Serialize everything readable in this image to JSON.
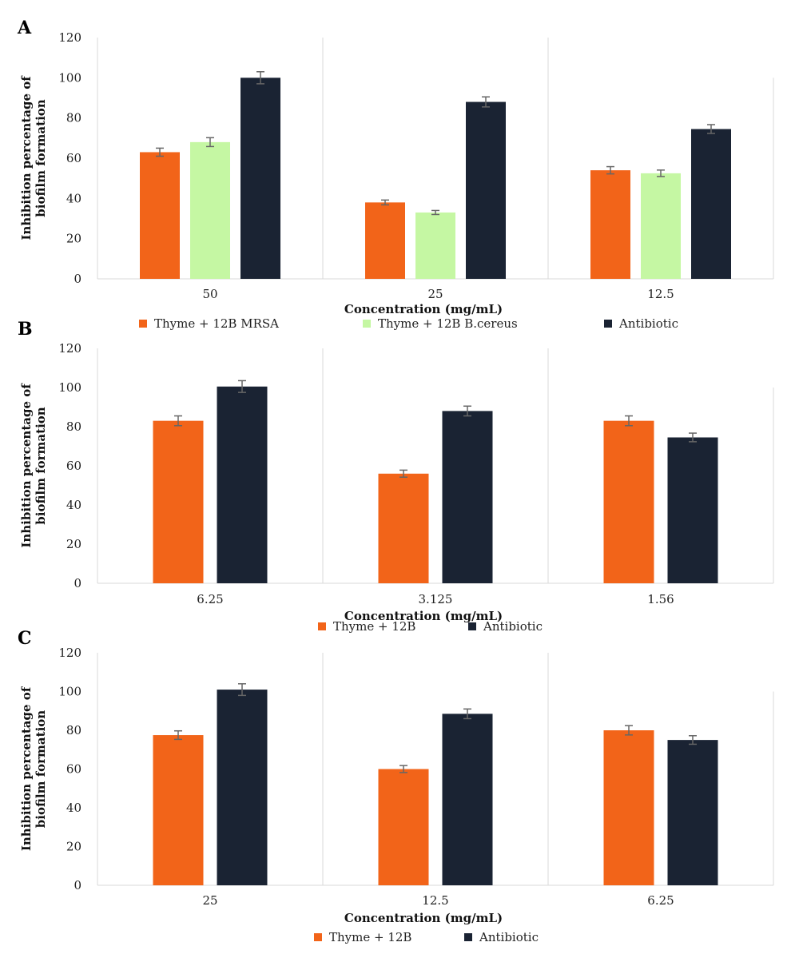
{
  "chart_data": [
    {
      "panel": "A",
      "type": "bar",
      "categories": [
        "50",
        "25",
        "12.5"
      ],
      "series": [
        {
          "name": "Thyme + 12B MRSA",
          "color": "#f26419",
          "values": [
            63,
            38,
            54
          ],
          "errors": [
            2,
            1.2,
            1.8
          ]
        },
        {
          "name": "Thyme + 12B B.cereus",
          "color": "#c5f7a3",
          "values": [
            68,
            33,
            52.5
          ],
          "errors": [
            2.2,
            1,
            1.6
          ]
        },
        {
          "name": "Antibiotic",
          "color": "#1a2333",
          "values": [
            100,
            88,
            74.5
          ],
          "errors": [
            3,
            2.5,
            2.2
          ]
        }
      ],
      "xlabel": "Concentration (mg/mL)",
      "ylabel": [
        "Inhibition percentage of",
        "biofilm formation"
      ],
      "ylim": [
        0,
        120
      ],
      "yticks": [
        0,
        20,
        40,
        60,
        80,
        100,
        120
      ],
      "legend": "bottom"
    },
    {
      "panel": "B",
      "type": "bar",
      "categories": [
        "6.25",
        "3.125",
        "1.56"
      ],
      "series": [
        {
          "name": "Thyme + 12B",
          "color": "#f26419",
          "values": [
            83,
            56,
            83
          ],
          "errors": [
            2.5,
            1.8,
            2.5
          ]
        },
        {
          "name": "Antibiotic",
          "color": "#1a2333",
          "values": [
            100.5,
            88,
            74.5
          ],
          "errors": [
            3,
            2.5,
            2.2
          ]
        }
      ],
      "xlabel": "Concentration (mg/mL)",
      "ylabel": [
        "Inhibition percentage of",
        "biofilm formation"
      ],
      "ylim": [
        0,
        120
      ],
      "yticks": [
        0,
        20,
        40,
        60,
        80,
        100,
        120
      ],
      "legend": "bottom"
    },
    {
      "panel": "C",
      "type": "bar",
      "categories": [
        "25",
        "12.5",
        "6.25"
      ],
      "series": [
        {
          "name": "Thyme + 12B",
          "color": "#f26419",
          "values": [
            77.5,
            60,
            80
          ],
          "errors": [
            2.2,
            1.8,
            2.4
          ]
        },
        {
          "name": "Antibiotic",
          "color": "#1a2333",
          "values": [
            101,
            88.5,
            75
          ],
          "errors": [
            3,
            2.5,
            2.2
          ]
        }
      ],
      "xlabel": "Concentration (mg/mL)",
      "ylabel": [
        "Inhibition percentage of",
        "biofilm formation"
      ],
      "ylim": [
        0,
        120
      ],
      "yticks": [
        0,
        20,
        40,
        60,
        80,
        100,
        120
      ],
      "legend": "bottom"
    }
  ]
}
